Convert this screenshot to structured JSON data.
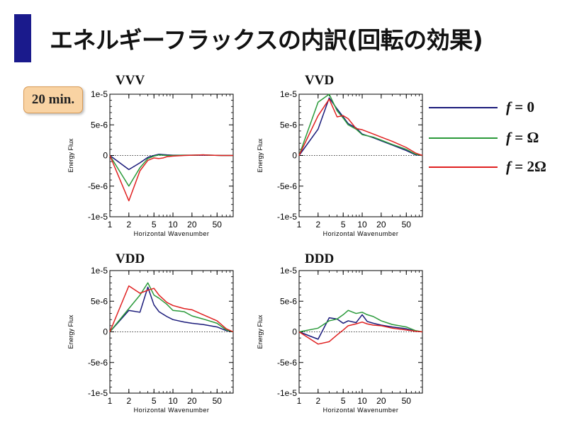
{
  "slide": {
    "title": "エネルギーフラックスの内訳(回転の効果)",
    "time_label": "20 min."
  },
  "legend": [
    {
      "f": "f",
      "eq": " = 0",
      "color": "#1a1a7a"
    },
    {
      "f": "f",
      "eq": " = Ω",
      "color": "#2a9a3a"
    },
    {
      "f": "f",
      "eq": " = 2Ω",
      "color": "#e02020"
    }
  ],
  "chart_data": [
    {
      "type": "line",
      "title": "VVV",
      "xlabel": "Horizontal Wavenumber",
      "ylabel": "Energy Flux",
      "xscale": "log",
      "xlim": [
        1,
        90
      ],
      "ylim": [
        -1e-05,
        1e-05
      ],
      "xticks": [
        1,
        2,
        5,
        10,
        20,
        50
      ],
      "yticks": [
        -1e-05,
        -5e-06,
        0,
        5e-06,
        1e-05
      ],
      "ytick_labels": [
        "-1e-5",
        "-5e-6",
        "0",
        "5e-6",
        "1e-5"
      ],
      "zero_line": true,
      "series": [
        {
          "name": "f = 0",
          "color": "#1a1a7a",
          "x": [
            1,
            2,
            3,
            4,
            5,
            6,
            7,
            8,
            10,
            15,
            20,
            30,
            40,
            60,
            90
          ],
          "y": [
            0,
            -2.3e-06,
            -1.2e-06,
            -3e-07,
            0,
            2e-07,
            1.5e-07,
            1e-07,
            5e-08,
            5e-08,
            5e-08,
            5e-08,
            5e-08,
            0,
            0
          ]
        },
        {
          "name": "f = Ω",
          "color": "#2a9a3a",
          "x": [
            1,
            2,
            3,
            4,
            5,
            6,
            7,
            8,
            10,
            15,
            20,
            30,
            40,
            60,
            90
          ],
          "y": [
            0,
            -5e-06,
            -2e-06,
            -5e-07,
            -1e-07,
            1e-07,
            5e-08,
            0,
            0,
            5e-08,
            5e-08,
            1e-07,
            5e-08,
            0,
            0
          ]
        },
        {
          "name": "f = 2Ω",
          "color": "#e02020",
          "x": [
            1,
            2,
            3,
            4,
            5,
            6,
            7,
            8,
            10,
            15,
            20,
            30,
            40,
            60,
            90
          ],
          "y": [
            0,
            -7.4e-06,
            -2.5e-06,
            -8e-07,
            -4e-07,
            -5e-07,
            -4e-07,
            -2e-07,
            -1e-07,
            0,
            5e-08,
            1e-07,
            5e-08,
            0,
            0
          ]
        }
      ]
    },
    {
      "type": "line",
      "title": "VVD",
      "xlabel": "Horizontal Wavenumber",
      "ylabel": "Energy Flux",
      "xscale": "log",
      "xlim": [
        1,
        90
      ],
      "ylim": [
        -1e-05,
        1e-05
      ],
      "xticks": [
        1,
        2,
        5,
        10,
        20,
        50
      ],
      "yticks": [
        -1e-05,
        -5e-06,
        0,
        5e-06,
        1e-05
      ],
      "ytick_labels": [
        "-1e-5",
        "-5e-6",
        "0",
        "5e-6",
        "1e-5"
      ],
      "zero_line": true,
      "series": [
        {
          "name": "f = 0",
          "color": "#1a1a7a",
          "x": [
            1,
            2,
            3,
            4,
            5,
            6,
            8,
            10,
            15,
            20,
            30,
            50,
            70,
            90
          ],
          "y": [
            0,
            4.3e-06,
            9.4e-06,
            7.6e-06,
            6.3e-06,
            5.2e-06,
            4.5e-06,
            3.5e-06,
            2.9e-06,
            2.4e-06,
            1.7e-06,
            8e-07,
            1e-07,
            0
          ]
        },
        {
          "name": "f = Ω",
          "color": "#2a9a3a",
          "x": [
            1,
            2,
            3,
            4,
            5,
            6,
            8,
            10,
            15,
            20,
            30,
            50,
            70,
            90
          ],
          "y": [
            0,
            8.7e-06,
            1e-05,
            7.3e-06,
            6.1e-06,
            5e-06,
            4.3e-06,
            3.4e-06,
            3e-06,
            2.5e-06,
            1.8e-06,
            1e-06,
            2e-07,
            0
          ]
        },
        {
          "name": "f = 2Ω",
          "color": "#e02020",
          "x": [
            1,
            2,
            3,
            4,
            5,
            6,
            8,
            10,
            15,
            20,
            30,
            50,
            70,
            90
          ],
          "y": [
            0,
            6.5e-06,
            9.2e-06,
            6.3e-06,
            6.5e-06,
            6e-06,
            4.4e-06,
            4.2e-06,
            3.5e-06,
            3e-06,
            2.3e-06,
            1.3e-06,
            4e-07,
            0
          ]
        }
      ]
    },
    {
      "type": "line",
      "title": "VDD",
      "xlabel": "Horizontal Wavenumber",
      "ylabel": "Energy Flux",
      "xscale": "log",
      "xlim": [
        1,
        90
      ],
      "ylim": [
        -1e-05,
        1e-05
      ],
      "xticks": [
        1,
        2,
        5,
        10,
        20,
        50
      ],
      "yticks": [
        -1e-05,
        -5e-06,
        0,
        5e-06,
        1e-05
      ],
      "ytick_labels": [
        "-1e-5",
        "-5e-6",
        "0",
        "5e-6",
        "1e-5"
      ],
      "zero_line": true,
      "series": [
        {
          "name": "f = 0",
          "color": "#1a1a7a",
          "x": [
            1,
            2,
            3,
            4,
            5,
            6,
            8,
            10,
            15,
            20,
            30,
            50,
            70,
            90
          ],
          "y": [
            0,
            3.5e-06,
            3.2e-06,
            7.3e-06,
            4.4e-06,
            3.3e-06,
            2.5e-06,
            2e-06,
            1.6e-06,
            1.4e-06,
            1.2e-06,
            8e-07,
            2e-07,
            0
          ]
        },
        {
          "name": "f = Ω",
          "color": "#2a9a3a",
          "x": [
            1,
            2,
            3,
            4,
            5,
            6,
            8,
            10,
            15,
            20,
            30,
            50,
            70,
            90
          ],
          "y": [
            0,
            3.8e-06,
            6e-06,
            8e-06,
            6e-06,
            5.5e-06,
            4.5e-06,
            3.5e-06,
            3.3e-06,
            2.6e-06,
            2.1e-06,
            1.4e-06,
            3e-07,
            0
          ]
        },
        {
          "name": "f = 2Ω",
          "color": "#e02020",
          "x": [
            1,
            2,
            3,
            4,
            5,
            6,
            8,
            10,
            15,
            20,
            30,
            50,
            70,
            90
          ],
          "y": [
            0,
            7.5e-06,
            6.3e-06,
            6.8e-06,
            7.1e-06,
            6e-06,
            4.8e-06,
            4.3e-06,
            3.8e-06,
            3.6e-06,
            2.8e-06,
            1.8e-06,
            5e-07,
            0
          ]
        }
      ]
    },
    {
      "type": "line",
      "title": "DDD",
      "xlabel": "Horizontal Wavenumber",
      "ylabel": "Energy Flux",
      "xscale": "log",
      "xlim": [
        1,
        90
      ],
      "ylim": [
        -1e-05,
        1e-05
      ],
      "xticks": [
        1,
        2,
        5,
        10,
        20,
        50
      ],
      "yticks": [
        -1e-05,
        -5e-06,
        0,
        5e-06,
        1e-05
      ],
      "ytick_labels": [
        "-1e-5",
        "-5e-6",
        "0",
        "5e-6",
        "1e-5"
      ],
      "zero_line": true,
      "series": [
        {
          "name": "f = 0",
          "color": "#1a1a7a",
          "x": [
            1,
            2,
            3,
            4,
            5,
            6,
            8,
            10,
            12,
            15,
            20,
            30,
            50,
            70,
            90
          ],
          "y": [
            0,
            -1.2e-06,
            2.3e-06,
            2.1e-06,
            1.4e-06,
            1.8e-06,
            1.5e-06,
            2.8e-06,
            1.7e-06,
            1.4e-06,
            1.1e-06,
            8e-07,
            5e-07,
            1e-07,
            0
          ]
        },
        {
          "name": "f = Ω",
          "color": "#2a9a3a",
          "x": [
            1,
            2,
            3,
            4,
            5,
            6,
            8,
            10,
            12,
            15,
            20,
            30,
            50,
            70,
            90
          ],
          "y": [
            0,
            6e-07,
            1.8e-06,
            2.1e-06,
            2.8e-06,
            3.5e-06,
            3e-06,
            3.2e-06,
            2.8e-06,
            2.5e-06,
            1.8e-06,
            1.2e-06,
            8e-07,
            2e-07,
            0
          ]
        },
        {
          "name": "f = 2Ω",
          "color": "#e02020",
          "x": [
            1,
            2,
            3,
            4,
            5,
            6,
            8,
            10,
            12,
            15,
            20,
            30,
            50,
            70,
            90
          ],
          "y": [
            0,
            -2e-06,
            -1.6e-06,
            -5e-07,
            3e-07,
            1e-06,
            1.3e-06,
            1.6e-06,
            1.3e-06,
            1.1e-06,
            1e-06,
            6e-07,
            3e-07,
            1e-07,
            0
          ]
        }
      ]
    }
  ]
}
